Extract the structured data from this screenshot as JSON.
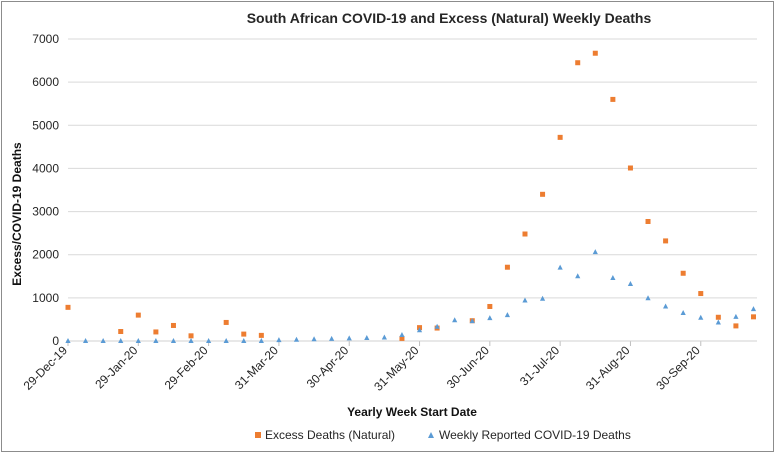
{
  "chart_data": {
    "type": "scatter",
    "title": "South African COVID-19 and Excess (Natural) Weekly Deaths",
    "xlabel": "Yearly Week Start Date",
    "ylabel": "Excess/COVID-19 Deaths",
    "ylim": [
      0,
      7000
    ],
    "yticks": [
      "0",
      "1000",
      "2000",
      "3000",
      "4000",
      "5000",
      "6000",
      "7000"
    ],
    "xticks": [
      "29-Dec-19",
      "29-Jan-20",
      "29-Feb-20",
      "31-Mar-20",
      "30-Apr-20",
      "31-May-20",
      "30-Jun-20",
      "31-Jul-20",
      "31-Aug-20",
      "30-Sep-20"
    ],
    "xtick_weeks": [
      0,
      4,
      8,
      12,
      16,
      20,
      24,
      28,
      32,
      36
    ],
    "week_range": [
      0,
      39.2
    ],
    "grid": true,
    "legend_position": "bottom",
    "series": [
      {
        "name": "Excess Deaths (Natural)",
        "marker": "square",
        "color": "#ED7D31",
        "weeks": [
          0,
          3,
          4,
          5,
          6,
          7,
          9,
          10,
          11,
          19,
          20,
          21,
          23,
          24,
          25,
          26,
          27,
          28,
          29,
          30,
          31,
          32,
          33,
          34,
          35,
          36,
          37,
          38,
          39
        ],
        "values": [
          780,
          220,
          600,
          210,
          360,
          120,
          430,
          160,
          130,
          60,
          310,
          300,
          470,
          800,
          1710,
          2480,
          3400,
          4720,
          6450,
          6670,
          5600,
          4010,
          2770,
          2320,
          1570,
          1100,
          550,
          350,
          560
        ]
      },
      {
        "name": "Weekly Reported COVID-19 Deaths",
        "marker": "triangle",
        "color": "#5B9BD5",
        "weeks": [
          0,
          1,
          2,
          3,
          4,
          5,
          6,
          7,
          8,
          9,
          10,
          11,
          12,
          13,
          14,
          15,
          16,
          17,
          18,
          19,
          20,
          21,
          22,
          23,
          24,
          25,
          26,
          27,
          28,
          29,
          30,
          31,
          32,
          33,
          34,
          35,
          36,
          37,
          38,
          39
        ],
        "values": [
          0,
          0,
          0,
          0,
          0,
          0,
          0,
          0,
          0,
          0,
          0,
          0,
          20,
          30,
          40,
          50,
          60,
          70,
          80,
          140,
          250,
          330,
          480,
          460,
          530,
          600,
          940,
          980,
          1700,
          1500,
          2060,
          1460,
          1320,
          990,
          800,
          650,
          540,
          430,
          560,
          740
        ]
      }
    ]
  }
}
